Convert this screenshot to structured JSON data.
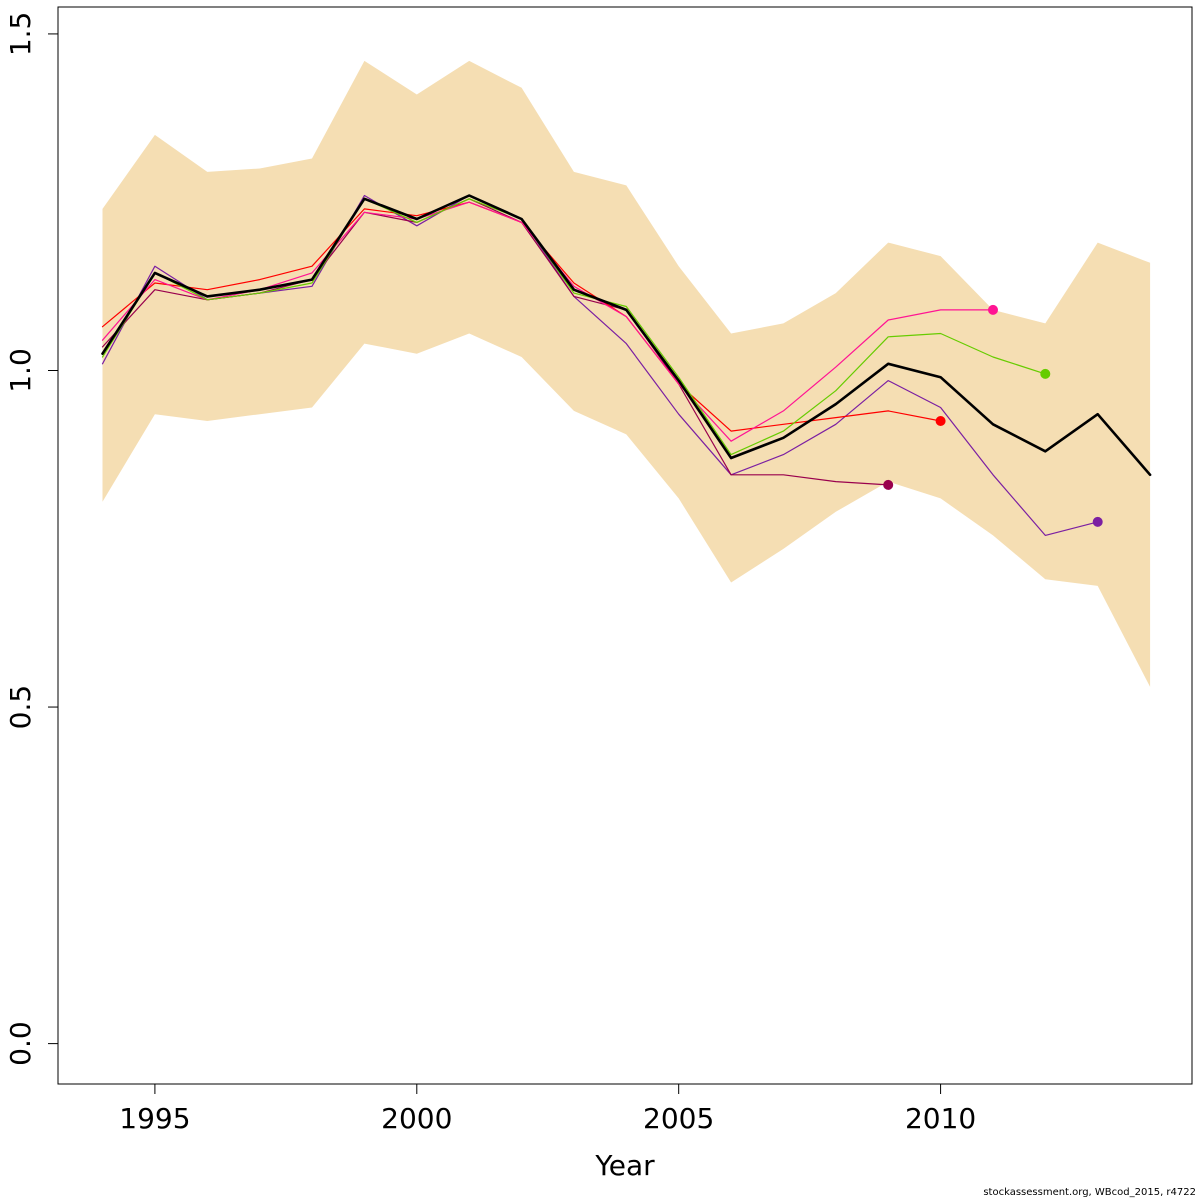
{
  "chart_data": {
    "type": "line",
    "title": "",
    "xlabel": "Year",
    "ylabel": "",
    "xlim": [
      1993.15,
      2014.8
    ],
    "ylim": [
      -0.06,
      1.54
    ],
    "x_ticks": [
      1995,
      2000,
      2005,
      2010
    ],
    "x_tick_labels": [
      "1995",
      "2000",
      "2005",
      "2010"
    ],
    "y_ticks": [
      0.0,
      0.5,
      1.0,
      1.5
    ],
    "y_tick_labels": [
      "0.0",
      "0.5",
      "1.0",
      "1.5"
    ],
    "grid": false,
    "confidence_band": {
      "color": "#F5DEB3",
      "x": [
        1994,
        1995,
        1996,
        1997,
        1998,
        1999,
        2000,
        2001,
        2002,
        2003,
        2004,
        2005,
        2006,
        2007,
        2008,
        2009,
        2010,
        2011,
        2012,
        2013,
        2014
      ],
      "upper": [
        1.24,
        1.35,
        1.295,
        1.3,
        1.315,
        1.46,
        1.41,
        1.46,
        1.42,
        1.295,
        1.275,
        1.155,
        1.055,
        1.07,
        1.115,
        1.19,
        1.17,
        1.09,
        1.07,
        1.19,
        1.16
      ],
      "lower": [
        0.805,
        0.935,
        0.925,
        0.935,
        0.945,
        1.04,
        1.025,
        1.055,
        1.02,
        0.94,
        0.905,
        0.81,
        0.685,
        0.735,
        0.79,
        0.835,
        0.81,
        0.755,
        0.69,
        0.68,
        0.53
      ]
    },
    "series": [
      {
        "color": "#000000",
        "width": 2.6,
        "x": [
          1994,
          1995,
          1996,
          1997,
          1998,
          1999,
          2000,
          2001,
          2002,
          2003,
          2004,
          2005,
          2006,
          2007,
          2008,
          2009,
          2010,
          2011,
          2012,
          2013,
          2014
        ],
        "values": [
          1.025,
          1.145,
          1.11,
          1.12,
          1.135,
          1.255,
          1.225,
          1.26,
          1.225,
          1.12,
          1.09,
          0.985,
          0.87,
          0.9,
          0.95,
          1.01,
          0.99,
          0.92,
          0.88,
          0.935,
          0.845
        ],
        "end_point": false
      },
      {
        "color": "#66CC00",
        "width": 1.2,
        "x": [
          1994,
          1995,
          1996,
          1997,
          1998,
          1999,
          2000,
          2001,
          2002,
          2003,
          2004,
          2005,
          2006,
          2007,
          2008,
          2009,
          2010,
          2011,
          2012
        ],
        "values": [
          1.02,
          1.145,
          1.105,
          1.115,
          1.13,
          1.255,
          1.22,
          1.255,
          1.225,
          1.115,
          1.095,
          0.99,
          0.875,
          0.91,
          0.97,
          1.05,
          1.055,
          1.02,
          0.995
        ],
        "end_point": true
      },
      {
        "color": "#FF1493",
        "width": 1.2,
        "x": [
          1994,
          1995,
          1996,
          1997,
          1998,
          1999,
          2000,
          2001,
          2002,
          2003,
          2004,
          2005,
          2006,
          2007,
          2008,
          2009,
          2010,
          2011
        ],
        "values": [
          1.045,
          1.135,
          1.105,
          1.12,
          1.145,
          1.235,
          1.225,
          1.25,
          1.22,
          1.125,
          1.08,
          0.98,
          0.895,
          0.94,
          1.005,
          1.075,
          1.09,
          1.09
        ],
        "end_point": true
      },
      {
        "color": "#FF0000",
        "width": 1.2,
        "x": [
          1994,
          1995,
          1996,
          1997,
          1998,
          1999,
          2000,
          2001,
          2002,
          2003,
          2004,
          2005,
          2006,
          2007,
          2008,
          2009,
          2010
        ],
        "values": [
          1.065,
          1.13,
          1.12,
          1.135,
          1.155,
          1.24,
          1.23,
          1.25,
          1.22,
          1.13,
          1.08,
          0.98,
          0.91,
          0.92,
          0.93,
          0.94,
          0.925
        ],
        "end_point": true
      },
      {
        "color": "#99004D",
        "width": 1.2,
        "x": [
          1994,
          1995,
          1996,
          1997,
          1998,
          1999,
          2000,
          2001,
          2002,
          2003,
          2004,
          2005,
          2006,
          2007,
          2008,
          2009
        ],
        "values": [
          1.035,
          1.12,
          1.105,
          1.115,
          1.135,
          1.235,
          1.22,
          1.255,
          1.22,
          1.11,
          1.09,
          0.98,
          0.845,
          0.845,
          0.835,
          0.83
        ],
        "end_point": true
      },
      {
        "color": "#7B1FA2",
        "width": 1.2,
        "x": [
          1994,
          1995,
          1996,
          1997,
          1998,
          1999,
          2000,
          2001,
          2002,
          2003,
          2004,
          2005,
          2006,
          2007,
          2008,
          2009,
          2010,
          2011,
          2012,
          2013
        ],
        "values": [
          1.01,
          1.155,
          1.105,
          1.115,
          1.125,
          1.26,
          1.215,
          1.26,
          1.225,
          1.11,
          1.04,
          0.935,
          0.845,
          0.875,
          0.92,
          0.985,
          0.945,
          0.845,
          0.755,
          0.775
        ],
        "end_point": true
      }
    ]
  },
  "footer": {
    "source_note": "stockassessment.org, WBcod_2015, r4722"
  }
}
